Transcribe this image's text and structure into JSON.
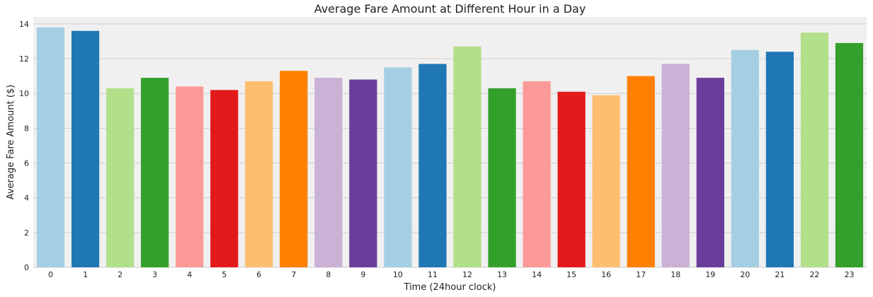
{
  "chart_data": {
    "type": "bar",
    "title": "Average Fare Amount at Different Hour in a Day",
    "xlabel": "Time (24hour clock)",
    "ylabel": "Average Fare Amount ($)",
    "ylim": [
      0,
      14.4
    ],
    "yticks": [
      0,
      2,
      4,
      6,
      8,
      10,
      12,
      14
    ],
    "grid": "horizontal",
    "categories": [
      "0",
      "1",
      "2",
      "3",
      "4",
      "5",
      "6",
      "7",
      "8",
      "9",
      "10",
      "11",
      "12",
      "13",
      "14",
      "15",
      "16",
      "17",
      "18",
      "19",
      "20",
      "21",
      "22",
      "23"
    ],
    "values": [
      13.8,
      13.6,
      10.3,
      10.9,
      10.4,
      10.2,
      10.7,
      11.3,
      10.9,
      10.8,
      11.5,
      11.7,
      12.7,
      10.3,
      10.7,
      10.1,
      9.9,
      11.0,
      11.7,
      10.9,
      12.5,
      12.4,
      13.5,
      12.9
    ],
    "palette": [
      "#a6cee3",
      "#1f78b4",
      "#b2df8a",
      "#33a02c",
      "#fb9a99",
      "#e31a1c",
      "#fdbf6f",
      "#ff7f00",
      "#cab2d6",
      "#6a3d9a"
    ],
    "background": "#f0f0f0",
    "grid_color": "#cfcfcf"
  }
}
